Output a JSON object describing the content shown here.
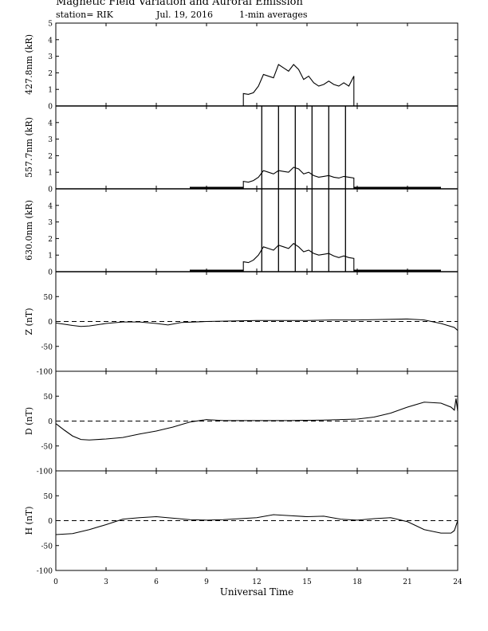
{
  "header": {
    "title": "Magnetic Field Variation and Auroral Emission",
    "station": "station= RIK",
    "date": "Jul. 19, 2016",
    "averaging": "1-min averages"
  },
  "xlabel": "Universal Time",
  "x_ticks": [
    "0",
    "3",
    "6",
    "9",
    "12",
    "15",
    "18",
    "21",
    "24"
  ],
  "chart_data": [
    {
      "type": "line",
      "ylabel": "427.8nm (kR)",
      "xlim": [
        0,
        24
      ],
      "ylim": [
        0,
        5
      ],
      "y_ticks": [
        0,
        1,
        2,
        3,
        4,
        5
      ],
      "zero_line": "solid",
      "series": [
        {
          "x": [
            0,
            11.2,
            11.2,
            11.5,
            11.8,
            12.1,
            12.4,
            12.7,
            13.0,
            13.3,
            13.6,
            13.9,
            14.2,
            14.5,
            14.8,
            15.1,
            15.4,
            15.7,
            16.0,
            16.3,
            16.6,
            16.9,
            17.2,
            17.5,
            17.8,
            17.8,
            24
          ],
          "y": [
            0,
            0,
            0.75,
            0.7,
            0.8,
            1.2,
            1.9,
            1.8,
            1.7,
            2.5,
            2.3,
            2.1,
            2.5,
            2.2,
            1.6,
            1.8,
            1.4,
            1.2,
            1.3,
            1.5,
            1.3,
            1.2,
            1.4,
            1.2,
            1.8,
            0,
            0
          ]
        }
      ],
      "spikes": []
    },
    {
      "type": "line",
      "ylabel": "557.7nm (kR)",
      "xlim": [
        0,
        24
      ],
      "ylim": [
        0,
        5
      ],
      "y_ticks": [
        0,
        1,
        2,
        3,
        4
      ],
      "zero_line": "solid",
      "baseline_segments": [
        [
          8.0,
          11.2
        ],
        [
          17.8,
          23.0
        ]
      ],
      "series": [
        {
          "x": [
            0,
            11.2,
            11.2,
            11.5,
            11.8,
            12.1,
            12.4,
            12.7,
            13.0,
            13.3,
            13.6,
            13.9,
            14.2,
            14.5,
            14.8,
            15.1,
            15.4,
            15.7,
            16.0,
            16.3,
            16.6,
            16.9,
            17.2,
            17.5,
            17.8,
            17.8,
            24
          ],
          "y": [
            0,
            0,
            0.45,
            0.4,
            0.5,
            0.7,
            1.1,
            1.0,
            0.9,
            1.1,
            1.05,
            1.0,
            1.3,
            1.2,
            0.9,
            1.0,
            0.8,
            0.7,
            0.75,
            0.8,
            0.7,
            0.65,
            0.75,
            0.7,
            0.65,
            0,
            0
          ]
        }
      ],
      "spikes": [
        12.3,
        13.3,
        14.3,
        15.3,
        16.3,
        17.3
      ]
    },
    {
      "type": "line",
      "ylabel": "630.0nm (kR)",
      "xlim": [
        0,
        24
      ],
      "ylim": [
        0,
        5
      ],
      "y_ticks": [
        0,
        1,
        2,
        3,
        4
      ],
      "zero_line": "solid",
      "baseline_segments": [
        [
          8.0,
          11.2
        ],
        [
          17.8,
          23.0
        ]
      ],
      "series": [
        {
          "x": [
            0,
            11.2,
            11.2,
            11.5,
            11.8,
            12.1,
            12.4,
            12.7,
            13.0,
            13.3,
            13.6,
            13.9,
            14.2,
            14.5,
            14.8,
            15.1,
            15.4,
            15.7,
            16.0,
            16.3,
            16.6,
            16.9,
            17.2,
            17.5,
            17.8,
            17.8,
            24
          ],
          "y": [
            0,
            0,
            0.6,
            0.55,
            0.7,
            1.0,
            1.5,
            1.4,
            1.3,
            1.6,
            1.5,
            1.4,
            1.7,
            1.5,
            1.2,
            1.3,
            1.1,
            1.0,
            1.05,
            1.1,
            0.95,
            0.85,
            0.95,
            0.85,
            0.8,
            0,
            0
          ]
        }
      ],
      "spikes": [
        12.3,
        13.3,
        14.3,
        15.3,
        16.3,
        17.3
      ]
    },
    {
      "type": "line",
      "ylabel": "Z (nT)",
      "xlim": [
        0,
        24
      ],
      "ylim": [
        -100,
        100
      ],
      "y_ticks": [
        -100,
        -50,
        0,
        50
      ],
      "zero_line": "dashed",
      "series": [
        {
          "x": [
            0,
            1,
            1.5,
            2,
            3,
            4,
            5,
            6,
            6.7,
            7.5,
            9,
            10.5,
            12,
            13.5,
            15,
            16.5,
            18,
            19.5,
            21,
            22,
            23,
            23.8,
            24
          ],
          "y": [
            -3,
            -8,
            -10,
            -9,
            -4,
            -1,
            -1,
            -4,
            -7,
            -2,
            0,
            1,
            2,
            2,
            2,
            3,
            3,
            4,
            5,
            3,
            -4,
            -12,
            -18
          ]
        }
      ],
      "spikes": []
    },
    {
      "type": "line",
      "ylabel": "D (nT)",
      "xlim": [
        0,
        24
      ],
      "ylim": [
        -100,
        100
      ],
      "y_ticks": [
        -100,
        -50,
        0,
        50
      ],
      "zero_line": "dashed",
      "series": [
        {
          "x": [
            0,
            0.5,
            1,
            1.5,
            2,
            3,
            4,
            5,
            6,
            7,
            8,
            9,
            10,
            12,
            14,
            16,
            18,
            19,
            20,
            21,
            22,
            23,
            23.6,
            23.8,
            23.9,
            24
          ],
          "y": [
            -5,
            -18,
            -30,
            -37,
            -38,
            -36,
            -33,
            -26,
            -20,
            -12,
            -2,
            3,
            1,
            1,
            1,
            2,
            4,
            8,
            16,
            28,
            38,
            36,
            28,
            22,
            45,
            20
          ]
        }
      ],
      "spikes": []
    },
    {
      "type": "line",
      "ylabel": "H (nT)",
      "xlim": [
        0,
        24
      ],
      "ylim": [
        -100,
        100
      ],
      "y_ticks": [
        -100,
        -50,
        0,
        50
      ],
      "zero_line": "dashed",
      "series": [
        {
          "x": [
            0,
            1,
            2,
            3,
            4,
            5,
            6,
            7,
            8,
            9,
            10,
            11,
            12,
            13,
            14,
            15,
            16,
            17,
            18,
            19,
            20,
            21,
            22,
            23,
            23.6,
            23.8,
            24
          ],
          "y": [
            -28,
            -26,
            -18,
            -8,
            3,
            6,
            8,
            5,
            2,
            1,
            2,
            4,
            6,
            12,
            10,
            8,
            9,
            3,
            1,
            4,
            6,
            -2,
            -18,
            -25,
            -25,
            -20,
            0
          ]
        }
      ],
      "spikes": []
    }
  ]
}
